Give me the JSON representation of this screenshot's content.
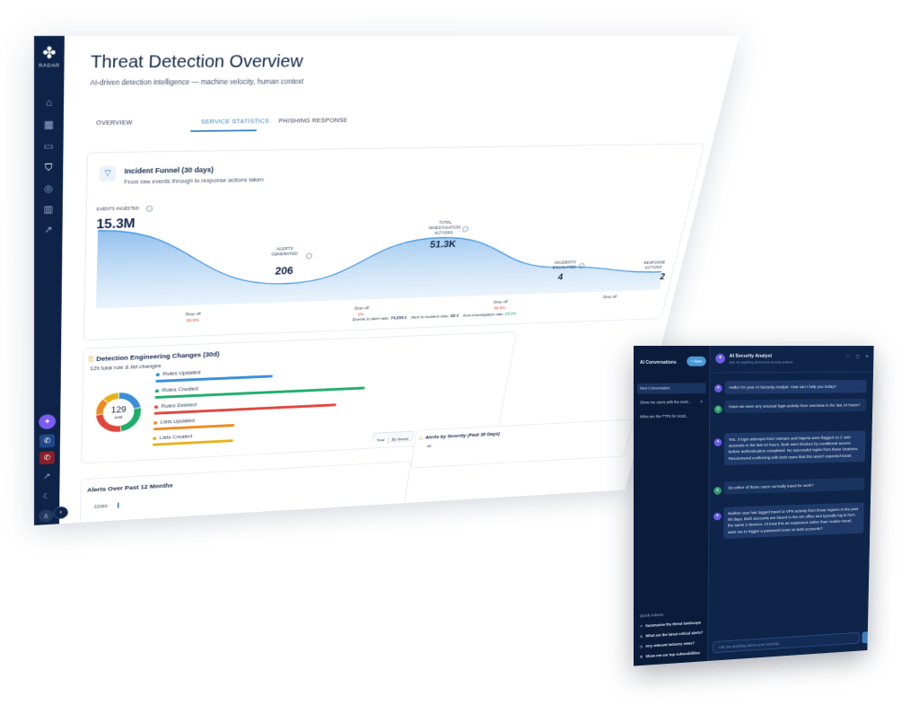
{
  "sidebar": {
    "logo_text": "RADAR",
    "items": [
      {
        "name": "home-icon",
        "glyph": "⌂"
      },
      {
        "name": "grid-icon",
        "glyph": "▦"
      },
      {
        "name": "ticket-icon",
        "glyph": "▭"
      },
      {
        "name": "shield-icon",
        "glyph": "⛉"
      },
      {
        "name": "target-icon",
        "glyph": "◎"
      },
      {
        "name": "book-icon",
        "glyph": "▥"
      },
      {
        "name": "trend-icon",
        "glyph": "↗"
      }
    ],
    "ai_icon": "✦",
    "phone_icon": "✆",
    "external_icon": "↗",
    "moon_icon": "☾",
    "user_icon": "♙",
    "expand_icon": "›"
  },
  "header": {
    "title": "Threat Detection Overview",
    "subtitle": "AI-driven detection intelligence — machine velocity, human context"
  },
  "tabs": [
    {
      "label": "OVERVIEW",
      "active": false
    },
    {
      "label": "SERVICE STATISTICS",
      "active": true
    },
    {
      "label": "PHISHING RESPONSE",
      "active": false
    }
  ],
  "funnel": {
    "title": "Incident Funnel (30 days)",
    "subtitle": "From raw events through to response actions taken",
    "stages": [
      {
        "label": "EVENTS INGESTED",
        "value": "15.3M"
      },
      {
        "label": "ALERTS GENERATED",
        "value": "206"
      },
      {
        "label": "TOTAL INVESTIGATION ACTIONS",
        "value": "51.3K"
      },
      {
        "label": "INCIDENTS ESCALATED",
        "value": "4"
      },
      {
        "label": "RESPONSE ACTIONS",
        "value": "2"
      }
    ],
    "dropoffs": [
      {
        "label": "Drop off",
        "value": "99.9%",
        "color": "#e0473c"
      },
      {
        "label": "Drop off",
        "value": "0%",
        "color": "#e0473c"
      },
      {
        "label": "Drop off",
        "value": "99.9%",
        "color": "#e0473c"
      },
      {
        "label": "Drop off",
        "value": ""
      }
    ],
    "ratios": {
      "event_to_alert_label": "Events to alert ratio:",
      "event_to_alert": "74,234:1",
      "alert_to_incident_label": "Alert to incident ratio:",
      "alert_to_incident": "52:1",
      "auto_inv_label": "Auto-investigation rate:",
      "auto_inv": "25.2%"
    },
    "curve_series": [
      15.3,
      0.2,
      5.1,
      0.4,
      0.2
    ]
  },
  "changes": {
    "title": "Detection Engineering Changes (30d)",
    "subtitle": "129 total rule & list changes",
    "total": "129",
    "total_label": "total",
    "bars": [
      {
        "label": "Rules Updated",
        "color": "#3b8fd9",
        "fraction": 0.34
      },
      {
        "label": "Rules Created",
        "color": "#1fae6a",
        "fraction": 0.62
      },
      {
        "label": "Rules Deleted",
        "color": "#e0473c",
        "fraction": 0.54
      },
      {
        "label": "Lists Updated",
        "color": "#f08a1c",
        "fraction": 0.24
      },
      {
        "label": "Lists Created",
        "color": "#e6b21a",
        "fraction": 0.24
      }
    ],
    "toggle": [
      "Total",
      "By Source"
    ]
  },
  "severity": {
    "title": "Alerts by Severity (Past 30 Days)",
    "axis_top": "40"
  },
  "alerts12": {
    "title": "Alerts Over Past 12 Months",
    "axis_top": "22000"
  },
  "chat": {
    "conversations_title": "AI Conversations",
    "new_label": "+ New",
    "conversations": [
      {
        "label": "New Conversation",
        "selected": true
      },
      {
        "label": "Show me users with the most...",
        "selected": false
      },
      {
        "label": "What are the TTPs for Scatt...",
        "selected": false
      }
    ],
    "quick_actions_title": "Quick Actions",
    "quick_actions": [
      {
        "icon": "↗",
        "label": "Summarise the threat landscape"
      },
      {
        "icon": "⚠",
        "label": "What are the latest critical alerts?"
      },
      {
        "icon": "◷",
        "label": "Any relevant industry news?"
      },
      {
        "icon": "⚙",
        "label": "Show me our top vulnerabilities"
      }
    ],
    "header_title": "AI Security Analyst",
    "header_sub": "Ask me anything about your security posture",
    "messages": [
      {
        "role": "bot",
        "text": "Hello! I'm your AI Security Analyst. How can I help you today?"
      },
      {
        "role": "user",
        "text": "Have we seen any unusual login activity from overseas in the last 24 hours?"
      },
      {
        "role": "bot",
        "text": "Yes. 3 login attempts from Vietnam and Nigeria were flagged on 2 user accounts in the last 24 hours. Both were blocked by conditional access before authentication completed. No successful logins from these locations. Recommend confirming with both users that this wasn't expected travel."
      },
      {
        "role": "user",
        "text": "Do either of those users normally travel for work?"
      },
      {
        "role": "bot",
        "text": "Neither user has logged travel or VPN activity from those regions in the past 90 days. Both accounts are based in the UK office and typically log in from the same 2 devices. I'd treat this as suspicious rather than routine travel, want me to trigger a password reset on both accounts?"
      }
    ],
    "input_placeholder": "Ask me anything about your security..."
  }
}
